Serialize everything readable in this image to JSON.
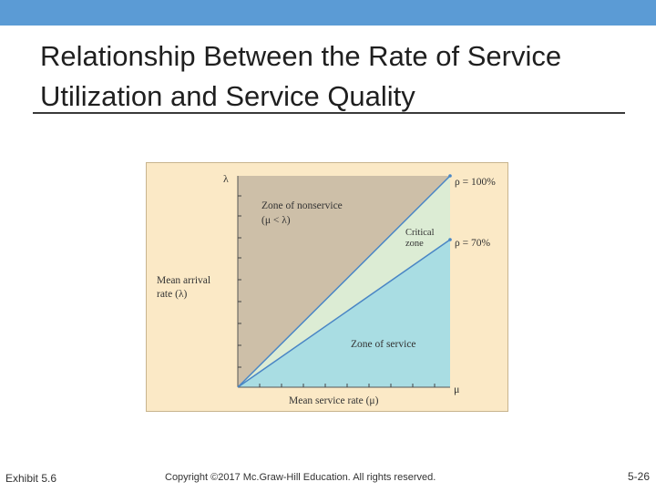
{
  "slide": {
    "title_line1": "Relationship Between the Rate of Service",
    "title_line2": "Utilization and Service Quality",
    "exhibit": "Exhibit 5.6",
    "copyright": "Copyright ©2017 Mc.Graw-Hill Education. All rights reserved.",
    "page_number": "5-26"
  },
  "diagram": {
    "y_axis_symbol": "λ",
    "x_axis_symbol": "μ",
    "y_label_line1": "Mean arrival",
    "y_label_line2": "rate (λ)",
    "x_label": "Mean service rate (μ)",
    "nonservice_line1": "Zone of nonservice",
    "nonservice_line2": "(μ < λ)",
    "critical_line1": "Critical",
    "critical_line2": "zone",
    "service_zone": "Zone of service",
    "rho_100": "ρ = 100%",
    "rho_70": "ρ = 70%",
    "colors": {
      "frame": "#fbe9c6",
      "nonservice": "#cdbfa8",
      "critical": "#dcecd4",
      "service": "#a9dde3",
      "line": "#4a86c5"
    }
  }
}
